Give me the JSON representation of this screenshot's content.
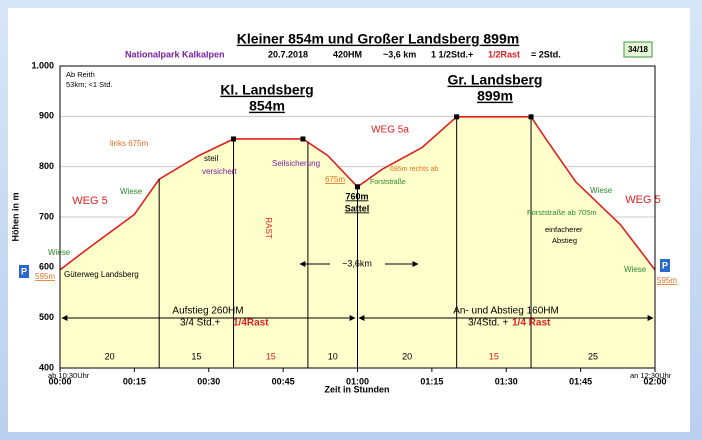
{
  "chart_data": {
    "type": "area",
    "title": "Kleiner 854m und Großer Landsberg 899m",
    "badge": "34/18",
    "xlabel": "Zeit in Stunden",
    "ylabel": "Höhen in m",
    "x": [
      0,
      6,
      15,
      20,
      28,
      35,
      49,
      54,
      60,
      65,
      73,
      80,
      95,
      98,
      104,
      113,
      120
    ],
    "series": [
      {
        "color": "#e02020",
        "fill": "#ffffcc",
        "values": [
          595,
          640,
          705,
          775,
          822,
          855,
          855,
          822,
          760,
          795,
          838,
          899,
          899,
          855,
          770,
          685,
          595
        ]
      }
    ],
    "xlim": [
      0,
      120
    ],
    "xticks": [
      {
        "value": 0,
        "label": "00:00"
      },
      {
        "value": 15,
        "label": "00:15"
      },
      {
        "value": 30,
        "label": "00:30"
      },
      {
        "value": 45,
        "label": "00:45"
      },
      {
        "value": 60,
        "label": "01:00"
      },
      {
        "value": 75,
        "label": "01:15"
      },
      {
        "value": 90,
        "label": "01:30"
      },
      {
        "value": 105,
        "label": "01:45"
      },
      {
        "value": 120,
        "label": "02:00"
      }
    ],
    "ylim": [
      400,
      1000
    ],
    "yticks": [
      400,
      500,
      600,
      700,
      800,
      900,
      {
        "value": 1000,
        "label": "1.000"
      }
    ],
    "grid": true,
    "segments": [
      {
        "minutes": 20,
        "color": "#000000"
      },
      {
        "minutes": 15,
        "color": "#000000"
      },
      {
        "minutes": 15,
        "color": "#e02020"
      },
      {
        "minutes": 10,
        "color": "#000000"
      },
      {
        "minutes": 20,
        "color": "#000000"
      },
      {
        "minutes": 15,
        "color": "#e02020"
      },
      {
        "minutes": 25,
        "color": "#000000"
      }
    ],
    "annotations": [
      {
        "text": "Nationalpark Kalkalpen",
        "color": "#7a1fa0"
      },
      {
        "text": "20.7.2018",
        "color": "#000000"
      },
      {
        "text": "420HM",
        "color": "#000000"
      },
      {
        "text": "~3,6 km",
        "color": "#000000"
      },
      {
        "text": "1 1/2Std.+",
        "color": "#000000"
      },
      {
        "text": "1/2Rast",
        "color": "#e02020"
      },
      {
        "text": "= 2Std.",
        "color": "#000000"
      },
      {
        "text": "Ab Reith",
        "color": "#000000"
      },
      {
        "text": "53km; <1 Std.",
        "color": "#000000"
      },
      {
        "text": "Kl. Landsberg",
        "color": "#000000"
      },
      {
        "text": "854m",
        "color": "#000000"
      },
      {
        "text": "Gr. Landsberg",
        "color": "#000000"
      },
      {
        "text": "899m",
        "color": "#000000"
      },
      {
        "text": "WEG 5",
        "color": "#e02020"
      },
      {
        "text": "WEG 5a",
        "color": "#e02020"
      },
      {
        "text": "WEG 5",
        "color": "#e02020"
      },
      {
        "text": "Wiese",
        "color": "#2a8a2a"
      },
      {
        "text": "Wiese",
        "color": "#2a8a2a"
      },
      {
        "text": "Wiese",
        "color": "#2a8a2a"
      },
      {
        "text": "Wiese",
        "color": "#2a8a2a"
      },
      {
        "text": "links 675m",
        "color": "#e07020"
      },
      {
        "text": "steil",
        "color": "#000000"
      },
      {
        "text": "versichert",
        "color": "#7a1fa0"
      },
      {
        "text": "Seilsicherung",
        "color": "#7a1fa0"
      },
      {
        "text": "675m",
        "color": "#e07020"
      },
      {
        "text": "760m",
        "color": "#000000"
      },
      {
        "text": "Sattel",
        "color": "#000000"
      },
      {
        "text": "Forststraße",
        "color": "#2a8a2a"
      },
      {
        "text": "695m rechts ab",
        "color": "#e07020"
      },
      {
        "text": "RAST",
        "color": "#e02020"
      },
      {
        "text": "595m",
        "color": "#e07020"
      },
      {
        "text": "Güterweg Landsberg",
        "color": "#000000"
      },
      {
        "text": "595m",
        "color": "#e07020"
      },
      {
        "text": "Forststraße ab 705m",
        "color": "#2a8a2a"
      },
      {
        "text": "einfacherer",
        "color": "#000000"
      },
      {
        "text": "Abstieg",
        "color": "#000000"
      },
      {
        "text": "~3,6km",
        "color": "#000000"
      },
      {
        "text": "Aufstieg 260HM",
        "color": "#000000"
      },
      {
        "text": "3/4 Std.+",
        "color": "#000000"
      },
      {
        "text": "1/4Rast",
        "color": "#e02020"
      },
      {
        "text": "An- und Abstieg 160HM",
        "color": "#000000"
      },
      {
        "text": "3/4Std. +",
        "color": "#000000"
      },
      {
        "text": "1/4 Rast",
        "color": "#e02020"
      },
      {
        "text": "ab 10:30Uhr",
        "color": "#000000"
      },
      {
        "text": "an 12:30Uhr",
        "color": "#000000"
      },
      {
        "text": "P",
        "color": "#ffffff"
      },
      {
        "text": "P",
        "color": "#ffffff"
      }
    ]
  }
}
